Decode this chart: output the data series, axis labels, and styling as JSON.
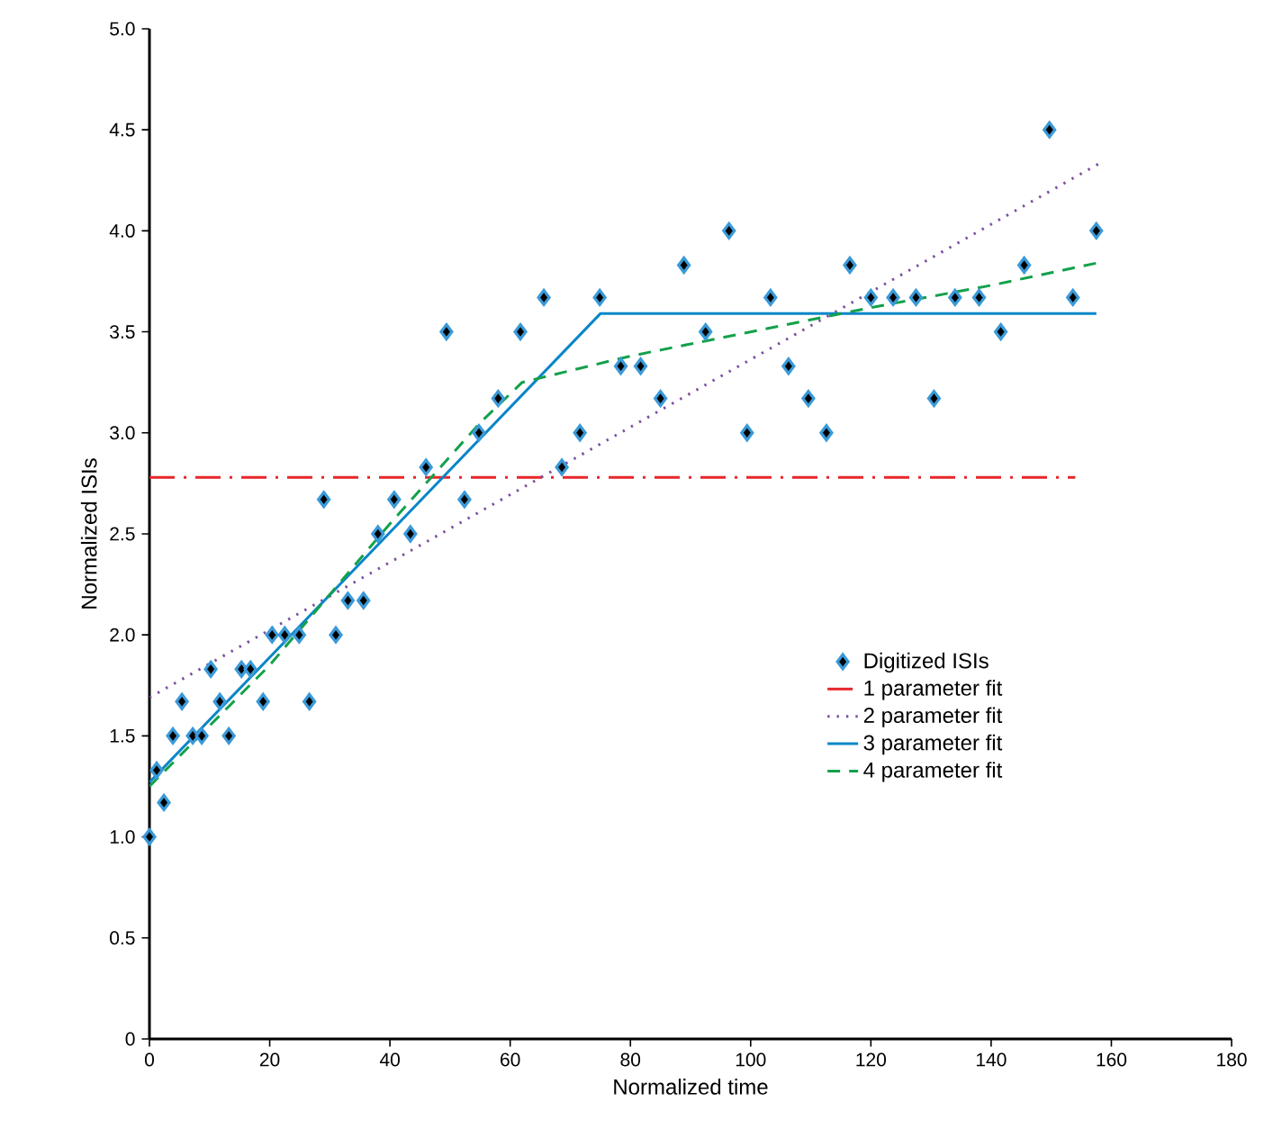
{
  "chart_data": {
    "type": "scatter",
    "xlabel": "Normalized time",
    "ylabel": "Normalized ISIs",
    "xlim": [
      0,
      180
    ],
    "ylim": [
      0,
      5
    ],
    "xticks": [
      0,
      20,
      40,
      60,
      80,
      100,
      120,
      140,
      160,
      180
    ],
    "yticks": [
      0,
      {
        "value": 0.5,
        "label": "0.5"
      },
      {
        "value": 1,
        "label": "1.0"
      },
      {
        "value": 1.5,
        "label": "1.5"
      },
      {
        "value": 2,
        "label": "2.0"
      },
      {
        "value": 2.5,
        "label": "2.5"
      },
      {
        "value": 3,
        "label": "3.0"
      },
      {
        "value": 3.5,
        "label": "3.5"
      },
      {
        "value": 4,
        "label": "4.0"
      },
      {
        "value": 4.5,
        "label": "4.5"
      },
      {
        "value": 5,
        "label": "5.0"
      }
    ],
    "legend": "bottom right",
    "grid": false,
    "series": [
      {
        "name": "Digitized ISIs",
        "marker": "diamond",
        "color": "#3a9ad9",
        "x": [
          0,
          1.2,
          2.4,
          3.9,
          5.4,
          7.2,
          8.7,
          10.2,
          11.7,
          13.2,
          15.3,
          16.8,
          18.9,
          20.4,
          22.5,
          24.9,
          26.6,
          29,
          31,
          33,
          35.6,
          38,
          40.7,
          43.4,
          46,
          49.4,
          52.4,
          54.8,
          58,
          61.7,
          65.6,
          68.6,
          71.6,
          74.9,
          78.4,
          81.7,
          85,
          88.9,
          92.5,
          96.4,
          99.4,
          103.3,
          106.3,
          109.6,
          112.6,
          116.5,
          120,
          123.7,
          127.5,
          130.5,
          134,
          138,
          141.6,
          145.5,
          149.7,
          153.6,
          157.5
        ],
        "values": [
          1.0,
          1.33,
          1.17,
          1.5,
          1.67,
          1.5,
          1.5,
          1.83,
          1.67,
          1.5,
          1.83,
          1.83,
          1.67,
          2.0,
          2.0,
          2.0,
          1.67,
          2.67,
          2.0,
          2.17,
          2.17,
          2.5,
          2.67,
          2.5,
          2.83,
          3.5,
          2.67,
          3.0,
          3.17,
          3.5,
          3.67,
          2.83,
          3.0,
          3.67,
          3.33,
          3.33,
          3.17,
          3.83,
          3.5,
          4.0,
          3.0,
          3.67,
          3.33,
          3.17,
          3.0,
          3.83,
          3.67,
          3.67,
          3.67,
          3.17,
          3.67,
          3.67,
          3.5,
          3.83,
          4.5,
          3.67,
          4.0
        ]
      },
      {
        "name": "1 parameter fit",
        "type": "line",
        "marker": "none",
        "line_style": "dashdot",
        "color": "#e8262a",
        "x": [
          0,
          154
        ],
        "values": [
          2.78,
          2.78
        ]
      },
      {
        "name": "2 parameter fit",
        "type": "line",
        "marker": "none",
        "line_style": "dotted",
        "color": "#7b4fa0",
        "x": [
          0,
          157.8
        ],
        "values": [
          1.69,
          4.33
        ]
      },
      {
        "name": "3 parameter fit",
        "type": "line",
        "marker": "none",
        "line_style": "solid",
        "color": "#0a86c8",
        "x": [
          0,
          75,
          157.5
        ],
        "values": [
          1.27,
          3.59,
          3.59
        ]
      },
      {
        "name": "4 parameter fit",
        "type": "line",
        "marker": "none",
        "line_style": "dashed",
        "color": "#13a14b",
        "x": [
          0,
          20,
          40,
          55,
          62,
          80,
          100,
          120,
          140,
          157.5
        ],
        "values": [
          1.25,
          1.85,
          2.55,
          3.05,
          3.25,
          3.38,
          3.5,
          3.62,
          3.73,
          3.84
        ]
      }
    ]
  }
}
